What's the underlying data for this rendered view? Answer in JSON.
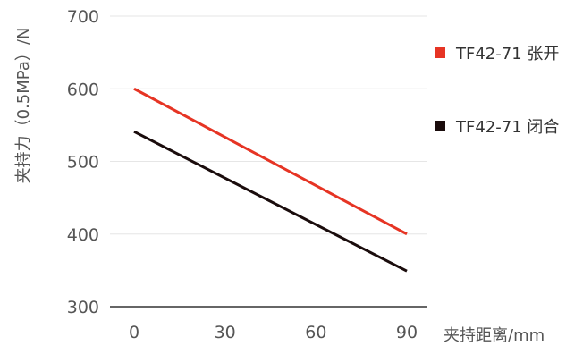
{
  "chart_data": {
    "type": "line",
    "title": "",
    "xlabel": "夹持距离/mm",
    "ylabel": "夹持力（0.5MPa）/N",
    "x": [
      0,
      90
    ],
    "x_ticks": [
      0,
      30,
      60,
      90
    ],
    "y_ticks": [
      300,
      400,
      500,
      600,
      700
    ],
    "xlim": [
      0,
      90
    ],
    "ylim": [
      300,
      700
    ],
    "grid": "horizontal",
    "legend_position": "right",
    "series": [
      {
        "name": "TF42-71 张开",
        "color": "#e63424",
        "values": [
          600,
          400
        ]
      },
      {
        "name": "TF42-71 闭合",
        "color": "#1a0c0c",
        "values": [
          541,
          349
        ]
      }
    ]
  },
  "colors": {
    "gridline": "#e6e6e6",
    "axis": "#333333",
    "tick_text": "#555555"
  }
}
